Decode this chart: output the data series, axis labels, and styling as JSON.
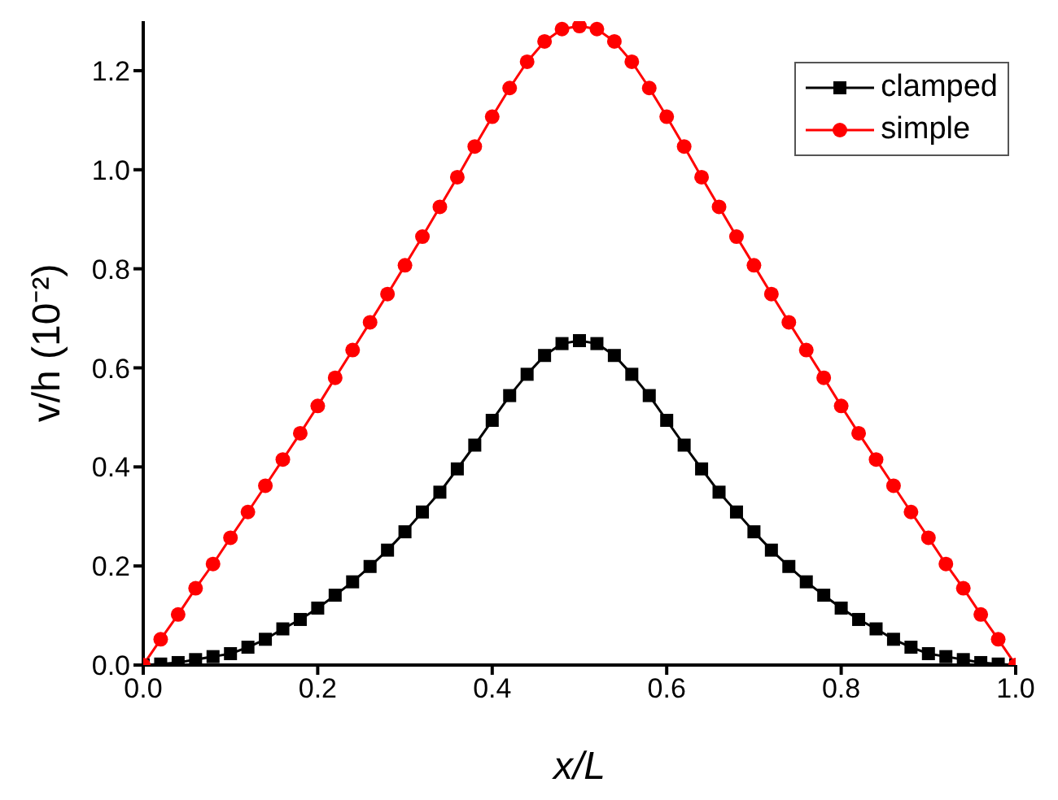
{
  "chart_data": {
    "type": "line",
    "xlabel": "x/L",
    "ylabel": "v/h (10⁻²)",
    "x": [
      0,
      0.02,
      0.04,
      0.06,
      0.08,
      0.1,
      0.12,
      0.14,
      0.16,
      0.18,
      0.2,
      0.22,
      0.24,
      0.26,
      0.28,
      0.3,
      0.32,
      0.34,
      0.36,
      0.38,
      0.4,
      0.42,
      0.44,
      0.46,
      0.48,
      0.5,
      0.52,
      0.54,
      0.56,
      0.58,
      0.6,
      0.62,
      0.64,
      0.66,
      0.68,
      0.7,
      0.72,
      0.74,
      0.76,
      0.78,
      0.8,
      0.82,
      0.84,
      0.86,
      0.88,
      0.9,
      0.92,
      0.94,
      0.96,
      0.98,
      1
    ],
    "series": [
      {
        "name": "clamped",
        "color": "#000000",
        "marker": "square",
        "values": [
          0,
          0.002,
          0.005,
          0.011,
          0.017,
          0.023,
          0.036,
          0.052,
          0.073,
          0.092,
          0.115,
          0.141,
          0.168,
          0.199,
          0.232,
          0.269,
          0.309,
          0.349,
          0.396,
          0.444,
          0.494,
          0.544,
          0.587,
          0.625,
          0.649,
          0.655,
          0.649,
          0.625,
          0.587,
          0.544,
          0.494,
          0.444,
          0.396,
          0.349,
          0.309,
          0.269,
          0.232,
          0.199,
          0.168,
          0.141,
          0.115,
          0.092,
          0.073,
          0.052,
          0.036,
          0.023,
          0.017,
          0.011,
          0.005,
          0.002,
          0
        ]
      },
      {
        "name": "simple",
        "color": "#ff0000",
        "marker": "circle",
        "values": [
          0,
          0.052,
          0.102,
          0.155,
          0.204,
          0.257,
          0.309,
          0.362,
          0.415,
          0.468,
          0.523,
          0.58,
          0.636,
          0.692,
          0.749,
          0.807,
          0.865,
          0.925,
          0.985,
          1.047,
          1.107,
          1.165,
          1.218,
          1.259,
          1.284,
          1.29,
          1.284,
          1.259,
          1.218,
          1.165,
          1.107,
          1.047,
          0.985,
          0.925,
          0.865,
          0.807,
          0.749,
          0.692,
          0.636,
          0.58,
          0.523,
          0.468,
          0.415,
          0.362,
          0.309,
          0.257,
          0.204,
          0.155,
          0.102,
          0.052,
          0
        ]
      }
    ],
    "xlim": [
      0,
      1
    ],
    "xticks": [
      {
        "value": 0,
        "label": "0.0"
      },
      0.2,
      0.4,
      0.6,
      0.8,
      {
        "value": 1,
        "label": "1.0"
      }
    ],
    "ylim": [
      0,
      1.3
    ],
    "yticks": [
      {
        "value": 0,
        "label": "0.0"
      },
      0.2,
      0.4,
      0.6,
      0.8,
      {
        "value": 1,
        "label": "1.0"
      },
      1.2
    ],
    "grid": false,
    "legend": "top right",
    "line_style": "solid"
  }
}
